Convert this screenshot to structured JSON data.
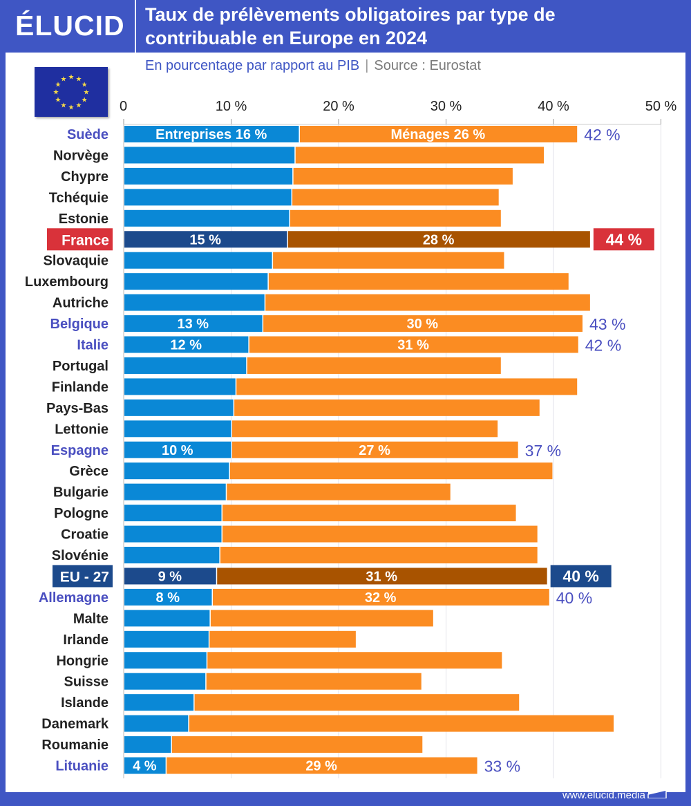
{
  "header": {
    "logo": "ÉLUCID",
    "title_line1": "Taux de prélèvements obligatoires par type de",
    "title_line2": "contribuable en Europe en 2024",
    "subtitle": "En pourcentage par rapport au PIB",
    "source": "Source : Eurostat"
  },
  "footer": {
    "url": "www.elucid.media"
  },
  "colors": {
    "brand": "#3f56c4",
    "entreprises": "#0a88d6",
    "menages": "#fb8c22",
    "highlight_entreprises": "#1c4a8c",
    "highlight_menages": "#a85300",
    "france_red": "#d9323a",
    "eu_blue": "#1c4a8c",
    "label_highlight": "#4a4fc0"
  },
  "chart_data": {
    "type": "bar",
    "orientation": "horizontal",
    "stacked": true,
    "title": "Taux de prélèvements obligatoires par type de contribuable en Europe en 2024",
    "subtitle": "En pourcentage par rapport au PIB",
    "xlabel": "",
    "ylabel": "",
    "xlim": [
      0,
      50
    ],
    "xticks": [
      0,
      10,
      20,
      30,
      40,
      50
    ],
    "xtick_labels": [
      "0",
      "10 %",
      "20 %",
      "30 %",
      "40 %",
      "50 %"
    ],
    "grid": true,
    "categories": [
      "Suède",
      "Norvège",
      "Chypre",
      "Tchéquie",
      "Estonie",
      "France",
      "Slovaquie",
      "Luxembourg",
      "Autriche",
      "Belgique",
      "Italie",
      "Portugal",
      "Finlande",
      "Pays-Bas",
      "Lettonie",
      "Espagne",
      "Grèce",
      "Bulgarie",
      "Pologne",
      "Croatie",
      "Slovénie",
      "EU - 27",
      "Allemagne",
      "Malte",
      "Irlande",
      "Hongrie",
      "Suisse",
      "Islande",
      "Danemark",
      "Roumanie",
      "Lituanie"
    ],
    "series": [
      {
        "name": "Entreprises",
        "values": [
          16.3,
          15.9,
          15.7,
          15.6,
          15.4,
          15.2,
          13.8,
          13.4,
          13.1,
          12.9,
          11.6,
          11.4,
          10.4,
          10.2,
          10.0,
          10.0,
          9.8,
          9.5,
          9.1,
          9.1,
          8.9,
          8.6,
          8.2,
          8.0,
          7.9,
          7.7,
          7.6,
          6.5,
          6.0,
          4.4,
          3.9
        ]
      },
      {
        "name": "Ménages",
        "values": [
          25.9,
          23.2,
          20.5,
          19.3,
          19.7,
          28.2,
          21.6,
          28.0,
          30.3,
          29.8,
          30.7,
          23.7,
          31.8,
          28.5,
          24.8,
          26.7,
          30.1,
          20.9,
          27.4,
          29.4,
          29.6,
          30.8,
          31.4,
          20.8,
          13.7,
          27.5,
          20.1,
          30.3,
          39.6,
          23.4,
          29.0
        ]
      }
    ],
    "highlighted": {
      "Suède": {
        "style": "labeled",
        "ent_label": "Entreprises 16 %",
        "men_label": "Ménages 26 %",
        "total_label": "42 %"
      },
      "France": {
        "style": "france",
        "ent_label": "15 %",
        "men_label": "28 %",
        "total_label": "44 %"
      },
      "Belgique": {
        "style": "labeled",
        "ent_label": "13 %",
        "men_label": "30 %",
        "total_label": "43 %"
      },
      "Italie": {
        "style": "labeled",
        "ent_label": "12 %",
        "men_label": "31 %",
        "total_label": "42 %"
      },
      "Espagne": {
        "style": "labeled",
        "ent_label": "10 %",
        "men_label": "27 %",
        "total_label": "37 %"
      },
      "EU - 27": {
        "style": "eu",
        "ent_label": "9 %",
        "men_label": "31 %",
        "total_label": "40 %"
      },
      "Allemagne": {
        "style": "labeled",
        "ent_label": "8 %",
        "men_label": "32 %",
        "total_label": "40 %"
      },
      "Lituanie": {
        "style": "labeled",
        "ent_label": "4 %",
        "men_label": "29 %",
        "total_label": "33 %"
      }
    },
    "legend": "inline (first bar)"
  }
}
